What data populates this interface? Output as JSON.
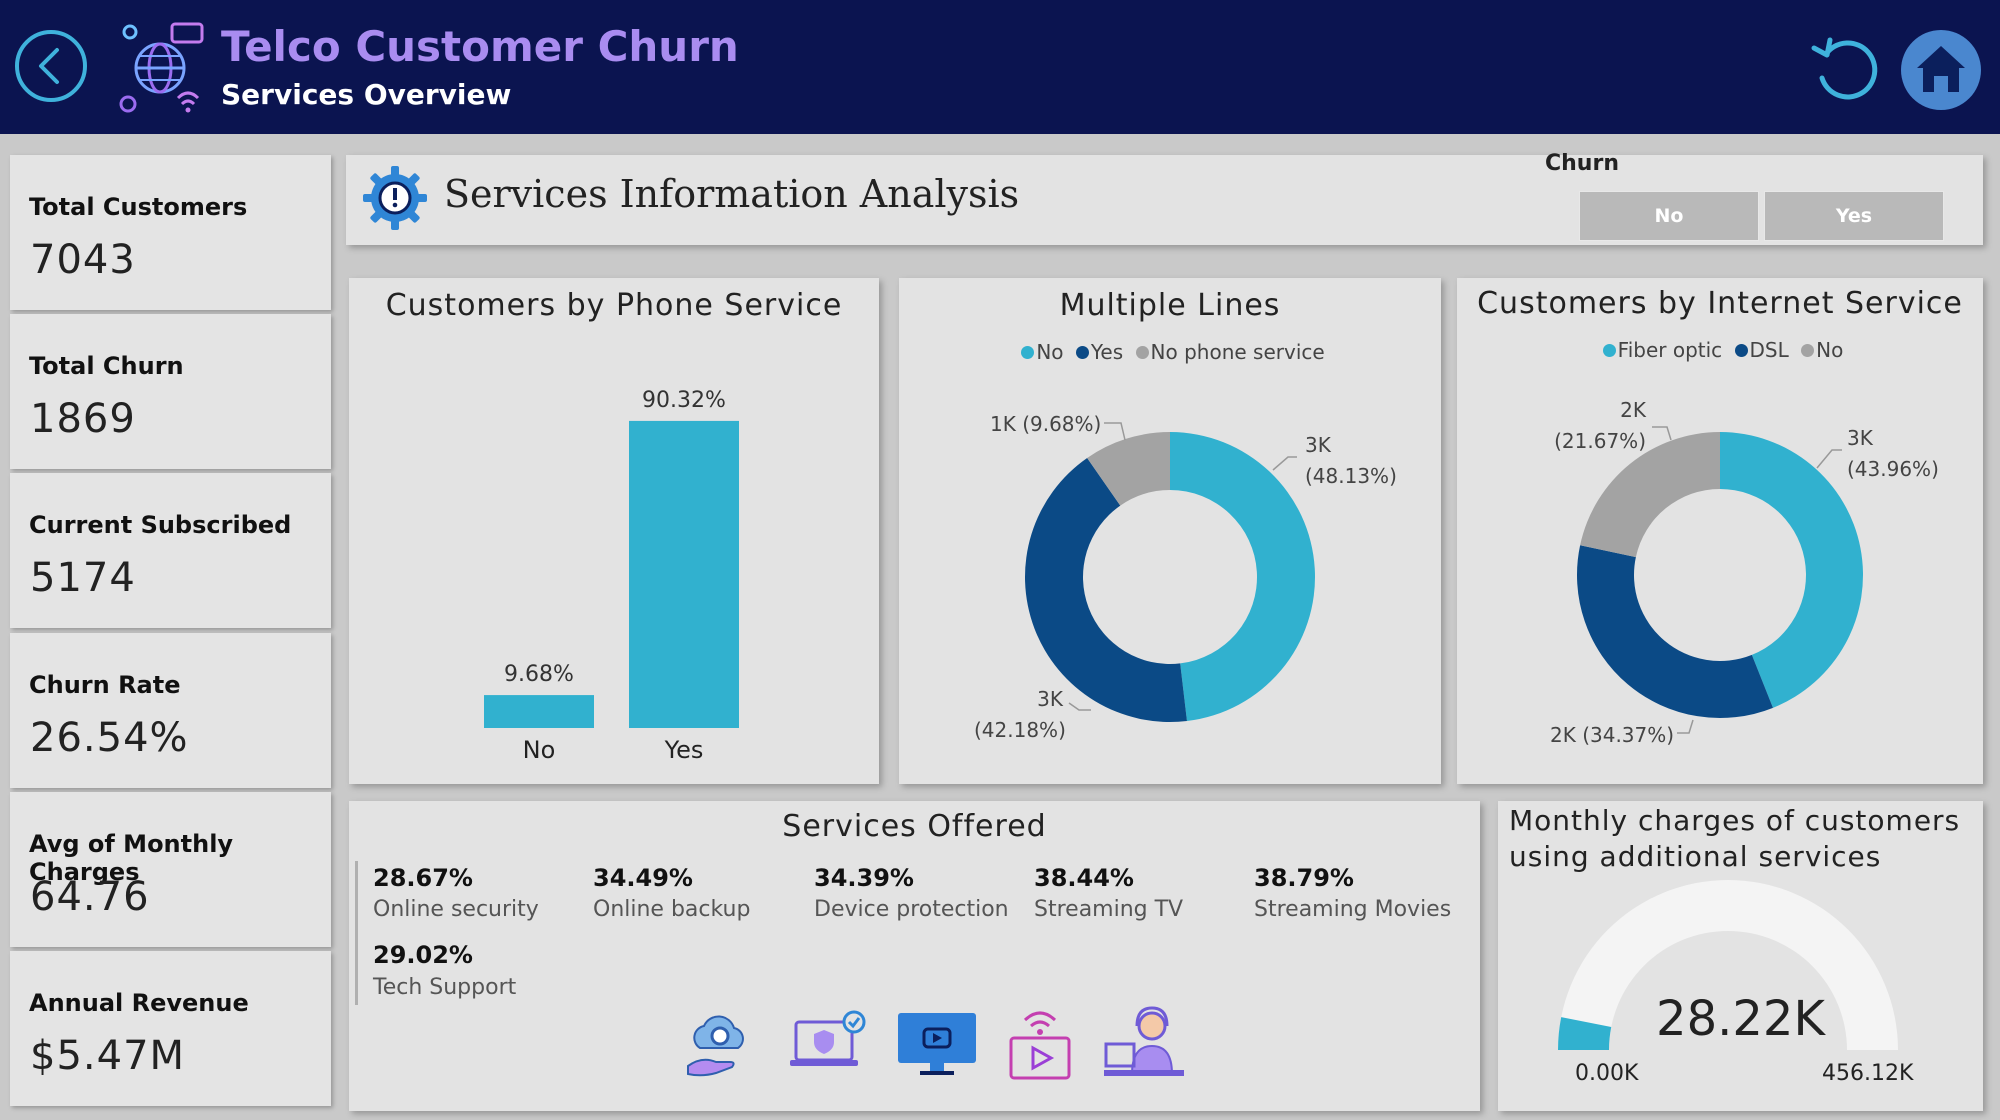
{
  "header": {
    "title": "Telco Customer Churn",
    "subtitle": "Services Overview"
  },
  "kpis": [
    {
      "label": "Total Customers",
      "value": "7043"
    },
    {
      "label": "Total Churn",
      "value": "1869"
    },
    {
      "label": "Current Subscribed",
      "value": "5174"
    },
    {
      "label": "Churn Rate",
      "value": "26.54%"
    },
    {
      "label": "Avg of Monthly Charges",
      "value": "64.76"
    },
    {
      "label": "Annual Revenue",
      "value": "$5.47M"
    }
  ],
  "banner": {
    "title": "Services Information Analysis",
    "slicer_title": "Churn",
    "slicer_options": [
      "No",
      "Yes"
    ]
  },
  "colors": {
    "header_bg": "#0b1450",
    "title_purple": "#a98cf0",
    "teal": "#31b1cf",
    "navy": "#0b4a86",
    "gray": "#a3a3a3",
    "panel_bg": "#e3e3e3"
  },
  "phone_chart": {
    "title": "Customers by Phone Service",
    "value_labels": [
      "9.68%",
      "90.32%"
    ]
  },
  "multiple_lines": {
    "title": "Multiple Lines",
    "legend": [
      "No",
      "Yes",
      "No phone service"
    ],
    "labels": {
      "no": [
        "3K",
        "(48.13%)"
      ],
      "yes": [
        "3K",
        "(42.18%)"
      ],
      "nophone": "1K (9.68%)"
    }
  },
  "internet_chart": {
    "title": "Customers by Internet Service",
    "legend": [
      "Fiber optic",
      "DSL",
      "No"
    ],
    "labels": {
      "fiber": [
        "3K",
        "(43.96%)"
      ],
      "dsl": "2K (34.37%)",
      "no": [
        "2K",
        "(21.67%)"
      ]
    }
  },
  "services": {
    "title": "Services Offered",
    "items": [
      {
        "pct": "28.67%",
        "label": "Online security"
      },
      {
        "pct": "34.49%",
        "label": "Online backup"
      },
      {
        "pct": "34.39%",
        "label": "Device protection"
      },
      {
        "pct": "38.44%",
        "label": "Streaming TV"
      },
      {
        "pct": "38.79%",
        "label": "Streaming Movies"
      },
      {
        "pct": "29.02%",
        "label": "Tech Support"
      }
    ],
    "icons": [
      "cloud-gear-icon",
      "secure-laptop-icon",
      "monitor-icon",
      "streaming-video-icon",
      "tech-support-icon"
    ]
  },
  "gauge": {
    "title_line1": "Monthly charges of customers",
    "title_line2": "using additional services",
    "value_label": "28.22K",
    "min_label": "0.00K",
    "max_label": "456.12K",
    "value": 28.22,
    "min": 0,
    "max": 456.12
  },
  "chart_data": [
    {
      "type": "bar",
      "title": "Customers by Phone Service",
      "categories": [
        "No",
        "Yes"
      ],
      "values": [
        9.68,
        90.32
      ],
      "ylim": [
        0,
        100
      ]
    },
    {
      "type": "pie",
      "title": "Multiple Lines",
      "categories": [
        "No",
        "Yes",
        "No phone service"
      ],
      "values": [
        48.13,
        42.18,
        9.68
      ],
      "counts": [
        "3K",
        "3K",
        "1K"
      ],
      "legend": "top"
    },
    {
      "type": "pie",
      "title": "Customers by Internet Service",
      "categories": [
        "Fiber optic",
        "DSL",
        "No"
      ],
      "values": [
        43.96,
        34.37,
        21.67
      ],
      "counts": [
        "3K",
        "2K",
        "2K"
      ],
      "legend": "top"
    }
  ]
}
